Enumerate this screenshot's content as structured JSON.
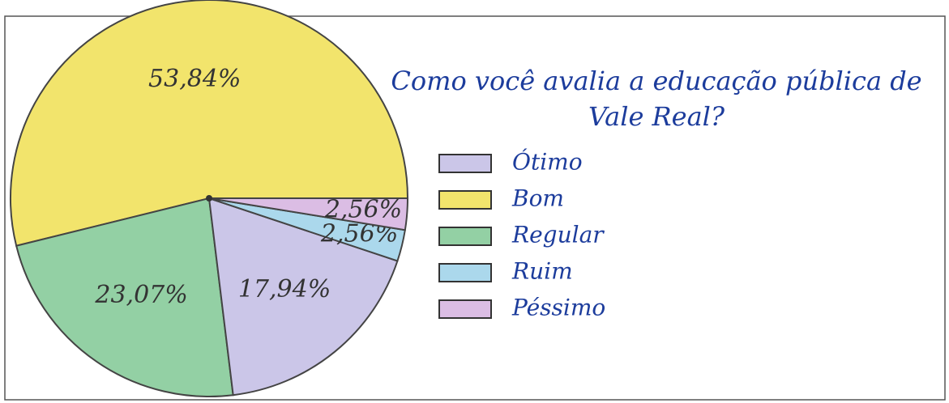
{
  "chart_data": {
    "type": "pie",
    "title": "Como você avalia a educação pública de Vale Real?",
    "categories": [
      "Bom",
      "Regular",
      "Ótimo",
      "Ruim",
      "Péssimo"
    ],
    "values": [
      53.84,
      23.07,
      17.94,
      2.56,
      2.56
    ],
    "value_labels": [
      "53,84%",
      "23,07%",
      "17,94%",
      "2,56%",
      "2,56%"
    ],
    "colors": [
      "#f2e46c",
      "#93d0a4",
      "#cbc6e8",
      "#abd8ec",
      "#dbbde4"
    ]
  }
}
